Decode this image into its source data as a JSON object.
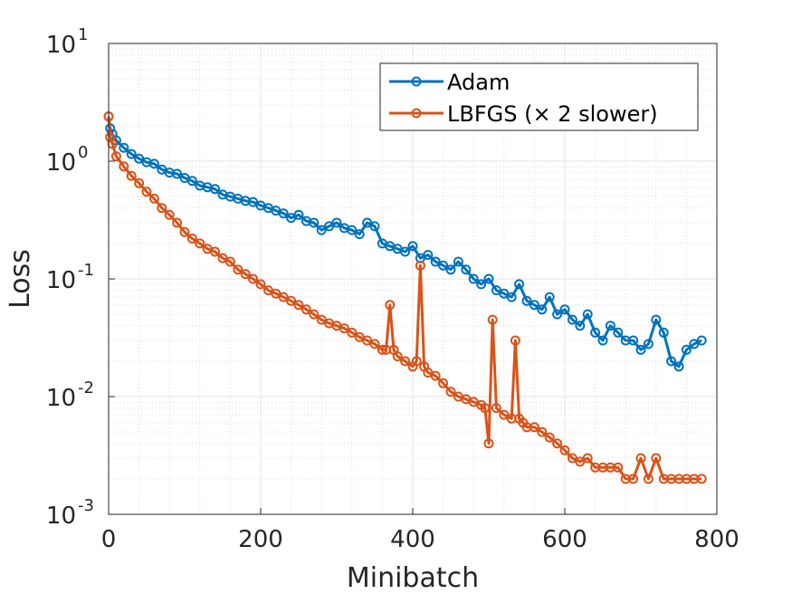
{
  "chart_data": {
    "type": "line",
    "xlabel": "Minibatch",
    "ylabel": "Loss",
    "xlim": [
      0,
      800
    ],
    "ylim": [
      0.001,
      10
    ],
    "y_scale": "log",
    "grid": true,
    "minor_grid": true,
    "legend_position": "top-right",
    "x_ticks": [
      "0",
      "200",
      "400",
      "600",
      "800"
    ],
    "x_tick_values": [
      0,
      200,
      400,
      600,
      800
    ],
    "y_ticks": [
      {
        "value": 0.001,
        "base": "10",
        "exp": "-3"
      },
      {
        "value": 0.01,
        "base": "10",
        "exp": "-2"
      },
      {
        "value": 0.1,
        "base": "10",
        "exp": "-1"
      },
      {
        "value": 1,
        "base": "10",
        "exp": "0"
      },
      {
        "value": 10,
        "base": "10",
        "exp": "1"
      }
    ],
    "series": [
      {
        "name": "Adam",
        "color": "#0072BD",
        "marker": "circle",
        "x": [
          0,
          2,
          5,
          10,
          20,
          30,
          40,
          50,
          60,
          70,
          80,
          90,
          100,
          110,
          120,
          130,
          140,
          150,
          160,
          170,
          180,
          190,
          200,
          210,
          220,
          230,
          240,
          250,
          260,
          270,
          280,
          290,
          300,
          310,
          320,
          330,
          340,
          350,
          360,
          370,
          380,
          390,
          400,
          410,
          420,
          430,
          440,
          450,
          460,
          470,
          480,
          490,
          500,
          510,
          520,
          530,
          540,
          550,
          560,
          570,
          580,
          590,
          600,
          610,
          620,
          630,
          640,
          650,
          660,
          670,
          680,
          690,
          700,
          710,
          720,
          730,
          740,
          750,
          760,
          770,
          780
        ],
        "values": [
          2.4,
          1.9,
          1.7,
          1.5,
          1.3,
          1.15,
          1.05,
          0.98,
          0.95,
          0.85,
          0.8,
          0.78,
          0.72,
          0.68,
          0.62,
          0.6,
          0.58,
          0.52,
          0.5,
          0.48,
          0.46,
          0.45,
          0.42,
          0.4,
          0.38,
          0.36,
          0.33,
          0.35,
          0.31,
          0.3,
          0.26,
          0.28,
          0.3,
          0.27,
          0.26,
          0.24,
          0.3,
          0.28,
          0.2,
          0.19,
          0.18,
          0.17,
          0.19,
          0.15,
          0.16,
          0.14,
          0.13,
          0.12,
          0.14,
          0.12,
          0.1,
          0.09,
          0.1,
          0.08,
          0.075,
          0.07,
          0.09,
          0.065,
          0.06,
          0.055,
          0.07,
          0.05,
          0.055,
          0.045,
          0.04,
          0.05,
          0.035,
          0.03,
          0.04,
          0.035,
          0.03,
          0.03,
          0.025,
          0.028,
          0.045,
          0.035,
          0.02,
          0.018,
          0.025,
          0.028,
          0.03
        ]
      },
      {
        "name": "LBFGS (× 2 slower)",
        "color": "#D95319",
        "marker": "circle",
        "x": [
          0,
          2,
          5,
          10,
          20,
          30,
          40,
          50,
          60,
          70,
          80,
          90,
          100,
          110,
          120,
          130,
          140,
          150,
          160,
          170,
          180,
          190,
          200,
          210,
          220,
          230,
          240,
          250,
          260,
          270,
          280,
          290,
          300,
          310,
          320,
          330,
          340,
          350,
          360,
          365,
          370,
          375,
          380,
          390,
          400,
          405,
          410,
          415,
          420,
          430,
          440,
          450,
          460,
          470,
          480,
          490,
          495,
          500,
          505,
          510,
          520,
          530,
          535,
          540,
          545,
          550,
          560,
          570,
          580,
          590,
          600,
          610,
          620,
          630,
          640,
          650,
          660,
          670,
          680,
          690,
          700,
          710,
          720,
          730,
          740,
          750,
          760,
          770,
          780
        ],
        "values": [
          2.4,
          1.6,
          1.4,
          1.1,
          0.9,
          0.75,
          0.65,
          0.55,
          0.48,
          0.4,
          0.35,
          0.3,
          0.25,
          0.22,
          0.2,
          0.18,
          0.17,
          0.15,
          0.14,
          0.12,
          0.11,
          0.1,
          0.09,
          0.08,
          0.075,
          0.07,
          0.065,
          0.06,
          0.055,
          0.05,
          0.045,
          0.042,
          0.04,
          0.038,
          0.035,
          0.032,
          0.03,
          0.028,
          0.025,
          0.025,
          0.06,
          0.025,
          0.022,
          0.02,
          0.018,
          0.02,
          0.13,
          0.018,
          0.016,
          0.015,
          0.013,
          0.011,
          0.01,
          0.0095,
          0.009,
          0.0085,
          0.008,
          0.004,
          0.045,
          0.008,
          0.007,
          0.0065,
          0.03,
          0.0065,
          0.006,
          0.0055,
          0.0055,
          0.005,
          0.0045,
          0.004,
          0.0035,
          0.003,
          0.0028,
          0.003,
          0.0025,
          0.0025,
          0.0025,
          0.0025,
          0.002,
          0.002,
          0.003,
          0.002,
          0.003,
          0.002,
          0.002,
          0.002,
          0.002,
          0.002,
          0.002
        ]
      }
    ]
  }
}
